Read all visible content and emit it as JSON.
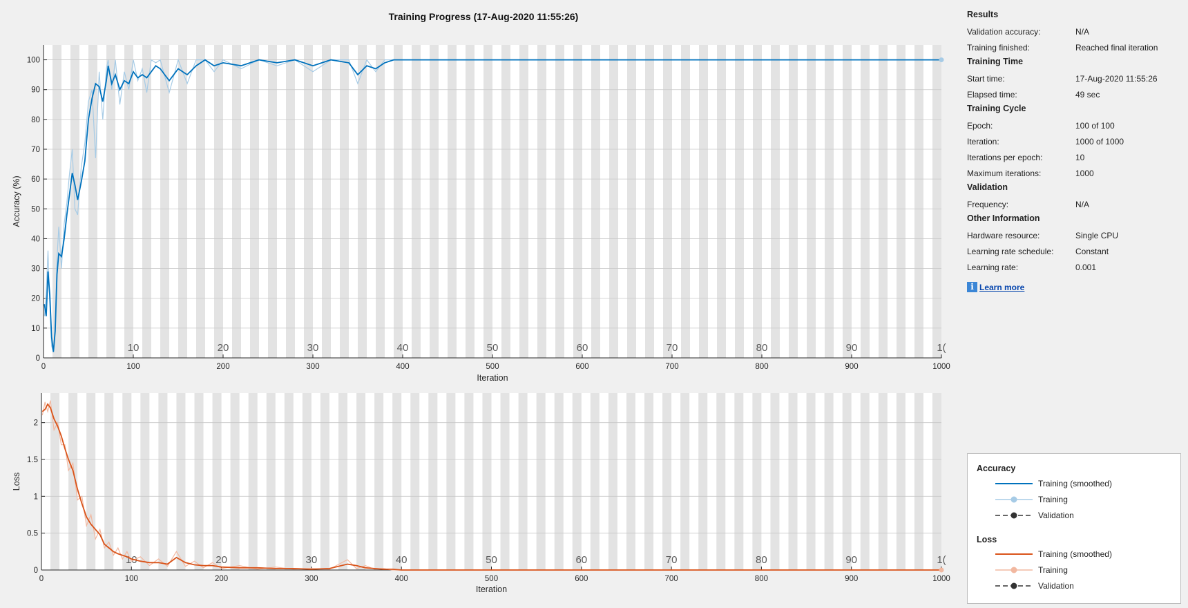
{
  "title": "Training Progress (17-Aug-2020 11:55:26)",
  "colors": {
    "accuracy_smoothed": "#0072bd",
    "accuracy_raw": "#a6cbe6",
    "loss_smoothed": "#d95319",
    "loss_raw": "#f2b8a0",
    "validation": "#333333",
    "band": "#e3e3e3"
  },
  "results": {
    "heading": "Results",
    "rows": [
      {
        "label": "Validation accuracy:",
        "value": "N/A"
      },
      {
        "label": "Training finished:",
        "value": "Reached final iteration"
      }
    ]
  },
  "training_time": {
    "heading": "Training Time",
    "rows": [
      {
        "label": "Start time:",
        "value": "17-Aug-2020 11:55:26"
      },
      {
        "label": "Elapsed time:",
        "value": "49 sec"
      }
    ]
  },
  "training_cycle": {
    "heading": "Training Cycle",
    "rows": [
      {
        "label": "Epoch:",
        "value": "100 of 100"
      },
      {
        "label": "Iteration:",
        "value": "1000 of 1000"
      },
      {
        "label": "Iterations per epoch:",
        "value": "10"
      },
      {
        "label": "Maximum iterations:",
        "value": "1000"
      }
    ]
  },
  "validation": {
    "heading": "Validation",
    "rows": [
      {
        "label": "Frequency:",
        "value": "N/A"
      }
    ]
  },
  "other_information": {
    "heading": "Other Information",
    "rows": [
      {
        "label": "Hardware resource:",
        "value": "Single CPU"
      },
      {
        "label": "Learning rate schedule:",
        "value": "Constant"
      },
      {
        "label": "Learning rate:",
        "value": "0.001"
      }
    ]
  },
  "learn_more": {
    "icon": "info-icon",
    "label": "Learn more"
  },
  "legend": {
    "accuracy_heading": "Accuracy",
    "loss_heading": "Loss",
    "training_smoothed": "Training (smoothed)",
    "training": "Training",
    "validation": "Validation"
  },
  "chart_data": [
    {
      "type": "line",
      "xlabel": "Iteration",
      "ylabel": "Accuracy (%)",
      "xlim": [
        0,
        1000
      ],
      "ylim": [
        0,
        105
      ],
      "xticks": [
        0,
        100,
        200,
        300,
        400,
        500,
        600,
        700,
        800,
        900,
        1000
      ],
      "yticks": [
        0,
        10,
        20,
        30,
        40,
        50,
        60,
        70,
        80,
        90,
        100
      ],
      "epoch_labels": [
        10,
        20,
        30,
        40,
        50,
        60,
        70,
        80,
        90,
        "1("
      ],
      "epoch_iterations": [
        100,
        200,
        300,
        400,
        500,
        600,
        700,
        800,
        900,
        1000
      ],
      "grid": true,
      "series": [
        {
          "name": "Training (smoothed)",
          "x": [
            1,
            3,
            5,
            7,
            9,
            11,
            13,
            15,
            17,
            20,
            23,
            26,
            29,
            32,
            35,
            38,
            42,
            46,
            50,
            54,
            58,
            62,
            66,
            70,
            72,
            76,
            80,
            85,
            90,
            95,
            100,
            105,
            110,
            115,
            120,
            125,
            130,
            140,
            150,
            160,
            170,
            180,
            190,
            200,
            220,
            240,
            260,
            280,
            300,
            320,
            340,
            350,
            360,
            370,
            380,
            390,
            1000
          ],
          "y": [
            18,
            14,
            29,
            21,
            7,
            2,
            9,
            28,
            35,
            34,
            40,
            48,
            55,
            62,
            58,
            53,
            59,
            66,
            80,
            87,
            92,
            91,
            86,
            93,
            98,
            92,
            95,
            90,
            93,
            92,
            96,
            94,
            95,
            94,
            96,
            98,
            97,
            93,
            97,
            95,
            98,
            100,
            98,
            99,
            98,
            100,
            99,
            100,
            98,
            100,
            99,
            95,
            98,
            97,
            99,
            100,
            100
          ]
        },
        {
          "name": "Training",
          "x": [
            1,
            3,
            5,
            7,
            9,
            11,
            13,
            15,
            17,
            20,
            23,
            26,
            29,
            32,
            35,
            38,
            42,
            46,
            50,
            54,
            58,
            62,
            66,
            70,
            72,
            76,
            80,
            85,
            90,
            95,
            100,
            105,
            110,
            115,
            120,
            125,
            130,
            140,
            150,
            160,
            170,
            180,
            190,
            200,
            220,
            240,
            260,
            280,
            300,
            320,
            340,
            350,
            360,
            370,
            380,
            390,
            1000
          ],
          "y": [
            14,
            22,
            36,
            18,
            4,
            2,
            12,
            33,
            44,
            30,
            45,
            52,
            62,
            70,
            50,
            48,
            64,
            72,
            86,
            90,
            67,
            96,
            80,
            97,
            100,
            90,
            100,
            85,
            96,
            90,
            100,
            93,
            97,
            89,
            100,
            99,
            100,
            89,
            100,
            92,
            100,
            100,
            96,
            100,
            97,
            100,
            98,
            100,
            96,
            100,
            100,
            92,
            100,
            96,
            100,
            100,
            100
          ]
        }
      ]
    },
    {
      "type": "line",
      "xlabel": "Iteration",
      "ylabel": "Loss",
      "xlim": [
        0,
        1000
      ],
      "ylim": [
        0,
        2.4
      ],
      "xticks": [
        0,
        100,
        200,
        300,
        400,
        500,
        600,
        700,
        800,
        900,
        1000
      ],
      "yticks": [
        0,
        0.5,
        1,
        1.5,
        2
      ],
      "epoch_labels": [
        10,
        20,
        30,
        40,
        50,
        60,
        70,
        80,
        90,
        "1("
      ],
      "epoch_iterations": [
        100,
        200,
        300,
        400,
        500,
        600,
        700,
        800,
        900,
        1000
      ],
      "grid": true,
      "series": [
        {
          "name": "Training (smoothed)",
          "x": [
            1,
            4,
            7,
            10,
            14,
            18,
            22,
            26,
            30,
            35,
            40,
            45,
            50,
            55,
            60,
            65,
            70,
            75,
            80,
            85,
            90,
            95,
            100,
            110,
            120,
            130,
            140,
            150,
            160,
            170,
            180,
            190,
            200,
            220,
            240,
            260,
            280,
            300,
            320,
            340,
            350,
            360,
            370,
            380,
            390,
            400,
            1000
          ],
          "y": [
            2.15,
            2.18,
            2.25,
            2.2,
            2.05,
            1.95,
            1.82,
            1.65,
            1.5,
            1.35,
            1.1,
            0.9,
            0.72,
            0.62,
            0.55,
            0.48,
            0.35,
            0.3,
            0.25,
            0.22,
            0.2,
            0.18,
            0.15,
            0.12,
            0.1,
            0.1,
            0.08,
            0.17,
            0.1,
            0.07,
            0.06,
            0.06,
            0.04,
            0.03,
            0.03,
            0.02,
            0.02,
            0.01,
            0.02,
            0.08,
            0.06,
            0.03,
            0.02,
            0.01,
            0.01,
            0.0,
            0.0
          ]
        },
        {
          "name": "Training",
          "x": [
            1,
            4,
            7,
            10,
            14,
            18,
            22,
            26,
            30,
            35,
            40,
            45,
            50,
            55,
            60,
            65,
            70,
            75,
            80,
            85,
            90,
            95,
            100,
            110,
            120,
            130,
            140,
            150,
            160,
            170,
            180,
            190,
            200,
            220,
            240,
            260,
            280,
            300,
            320,
            340,
            350,
            360,
            370,
            380,
            390,
            400,
            1000
          ],
          "y": [
            2.1,
            2.28,
            2.15,
            2.3,
            1.9,
            2.0,
            1.7,
            1.7,
            1.35,
            1.45,
            0.95,
            1.0,
            0.6,
            0.75,
            0.42,
            0.55,
            0.3,
            0.38,
            0.2,
            0.3,
            0.15,
            0.25,
            0.12,
            0.18,
            0.06,
            0.15,
            0.05,
            0.25,
            0.05,
            0.12,
            0.03,
            0.1,
            0.02,
            0.06,
            0.01,
            0.04,
            0.01,
            0.02,
            0.01,
            0.14,
            0.02,
            0.06,
            0.01,
            0.02,
            0.0,
            0.0,
            0.0
          ]
        }
      ]
    }
  ]
}
